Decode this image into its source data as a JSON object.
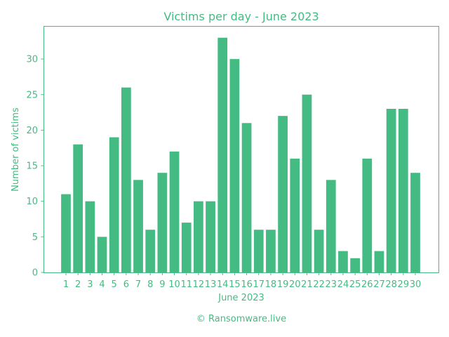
{
  "colors": {
    "accent": "#44bb82",
    "background": "#ffffff"
  },
  "footer": "© Ransomware.live",
  "chart_data": {
    "type": "bar",
    "title": "Victims per day - June 2023",
    "xlabel": "June 2023",
    "ylabel": "Number of victims",
    "categories": [
      "1",
      "2",
      "3",
      "4",
      "5",
      "6",
      "7",
      "8",
      "9",
      "10",
      "11",
      "12",
      "13",
      "14",
      "15",
      "16",
      "17",
      "18",
      "19",
      "20",
      "21",
      "22",
      "23",
      "24",
      "25",
      "26",
      "27",
      "28",
      "29",
      "30"
    ],
    "values": [
      11,
      18,
      10,
      5,
      19,
      26,
      13,
      6,
      14,
      17,
      7,
      10,
      10,
      33,
      30,
      21,
      6,
      6,
      22,
      16,
      25,
      6,
      13,
      3,
      2,
      16,
      3,
      23,
      23,
      14
    ],
    "ylim": [
      0,
      34.65
    ],
    "yticks": [
      0,
      5,
      10,
      15,
      20,
      25,
      30
    ],
    "grid": false,
    "bar_color": "#44bb82"
  }
}
